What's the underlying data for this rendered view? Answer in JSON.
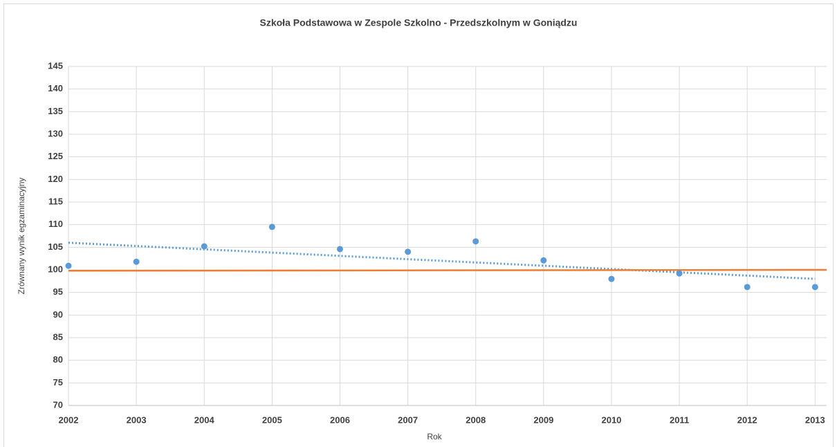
{
  "chart_data": {
    "type": "scatter",
    "title": "Szkoła Podstawowa w Zespole Szkolno - Przedszkolnym w Goniądzu",
    "xlabel": "Rok",
    "ylabel": "Zrównany wynik egzaminacyjny",
    "x": [
      2002,
      2003,
      2004,
      2005,
      2006,
      2007,
      2008,
      2009,
      2010,
      2011,
      2012,
      2013
    ],
    "series": [
      {
        "color": "#5b9bd5",
        "values": [
          100.9,
          101.8,
          105.2,
          109.5,
          104.6,
          104.0,
          106.3,
          102.1,
          98.0,
          99.2,
          96.2,
          96.2
        ]
      },
      {
        "type": "line",
        "dash": "dotted",
        "color": "#5b9bd5",
        "x": [
          2002,
          2013
        ],
        "values": [
          106.0,
          98.0
        ]
      },
      {
        "type": "line",
        "color": "#ed7d31",
        "x": [
          2002,
          2013.17
        ],
        "values": [
          99.8,
          100.0
        ]
      }
    ],
    "xlim": [
      2002,
      2013.17
    ],
    "xticks": [
      2002,
      2003,
      2004,
      2005,
      2006,
      2007,
      2008,
      2009,
      2010,
      2011,
      2012,
      2013
    ],
    "ylim": [
      70,
      145
    ],
    "yticks": [
      70,
      75,
      80,
      85,
      90,
      95,
      100,
      105,
      110,
      115,
      120,
      125,
      130,
      135,
      140,
      145
    ],
    "grid": true
  }
}
